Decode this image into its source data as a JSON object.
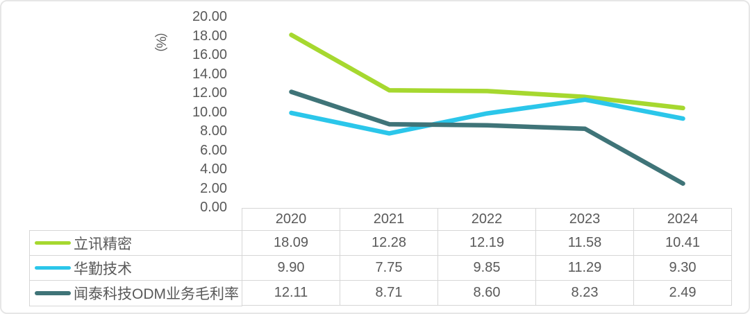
{
  "chart_data": {
    "type": "line",
    "title": "",
    "categories": [
      "2020",
      "2021",
      "2022",
      "2023",
      "2024"
    ],
    "series": [
      {
        "name": "立讯精密",
        "color": "#a6d82f",
        "values": [
          18.09,
          12.28,
          12.19,
          11.58,
          10.41
        ]
      },
      {
        "name": "华勤技术",
        "color": "#2bc6ea",
        "values": [
          9.9,
          7.75,
          9.85,
          11.29,
          9.3
        ]
      },
      {
        "name": "闻泰科技ODM业务毛利率",
        "color": "#3f7478",
        "values": [
          12.11,
          8.71,
          8.6,
          8.23,
          2.49
        ]
      }
    ],
    "xlabel": "",
    "ylabel": "（%）",
    "ylim": [
      0,
      20
    ],
    "y_tick_step": 2,
    "y_ticks": [
      "20.00",
      "18.00",
      "16.00",
      "14.00",
      "12.00",
      "10.00",
      "8.00",
      "6.00",
      "4.00",
      "2.00",
      "0.00"
    ],
    "value_decimals": 2,
    "grid": false,
    "legend_position": "table-left"
  },
  "styles": {
    "text_color": "#595959",
    "table_border_color": "#d6d6d6",
    "card_border_color": "#e6e6e6",
    "background": "#ffffff"
  }
}
